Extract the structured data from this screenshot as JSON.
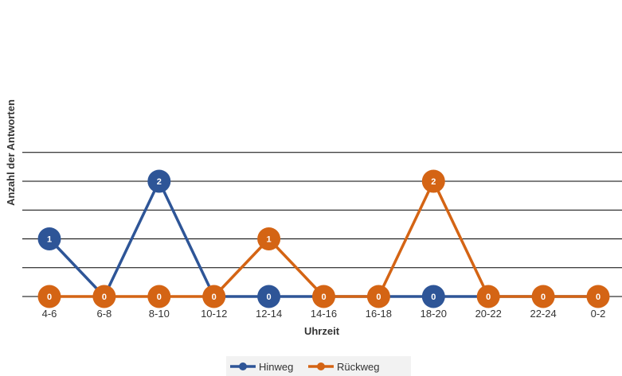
{
  "chart_data": {
    "type": "line",
    "xlabel": "Uhrzeit",
    "ylabel": "Anzahl der Antworten",
    "categories": [
      "4-6",
      "6-8",
      "8-10",
      "10-12",
      "12-14",
      "14-16",
      "16-18",
      "18-20",
      "20-22",
      "22-24",
      "0-2"
    ],
    "ylim": [
      0,
      2.5
    ],
    "grid": true,
    "legend_position": "bottom",
    "data_labels": true,
    "series": [
      {
        "name": "Hinweg",
        "color": "#2E5597",
        "values": [
          1,
          0,
          2,
          0,
          0,
          0,
          0,
          0,
          0,
          0,
          0
        ],
        "labeled": [
          true,
          false,
          true,
          false,
          true,
          false,
          false,
          true,
          false,
          false,
          false
        ]
      },
      {
        "name": "Rückweg",
        "color": "#D46414",
        "values": [
          0,
          0,
          0,
          0,
          1,
          0,
          0,
          2,
          0,
          0,
          0
        ],
        "labeled": [
          true,
          true,
          true,
          true,
          true,
          true,
          true,
          true,
          true,
          true,
          true
        ]
      }
    ]
  }
}
